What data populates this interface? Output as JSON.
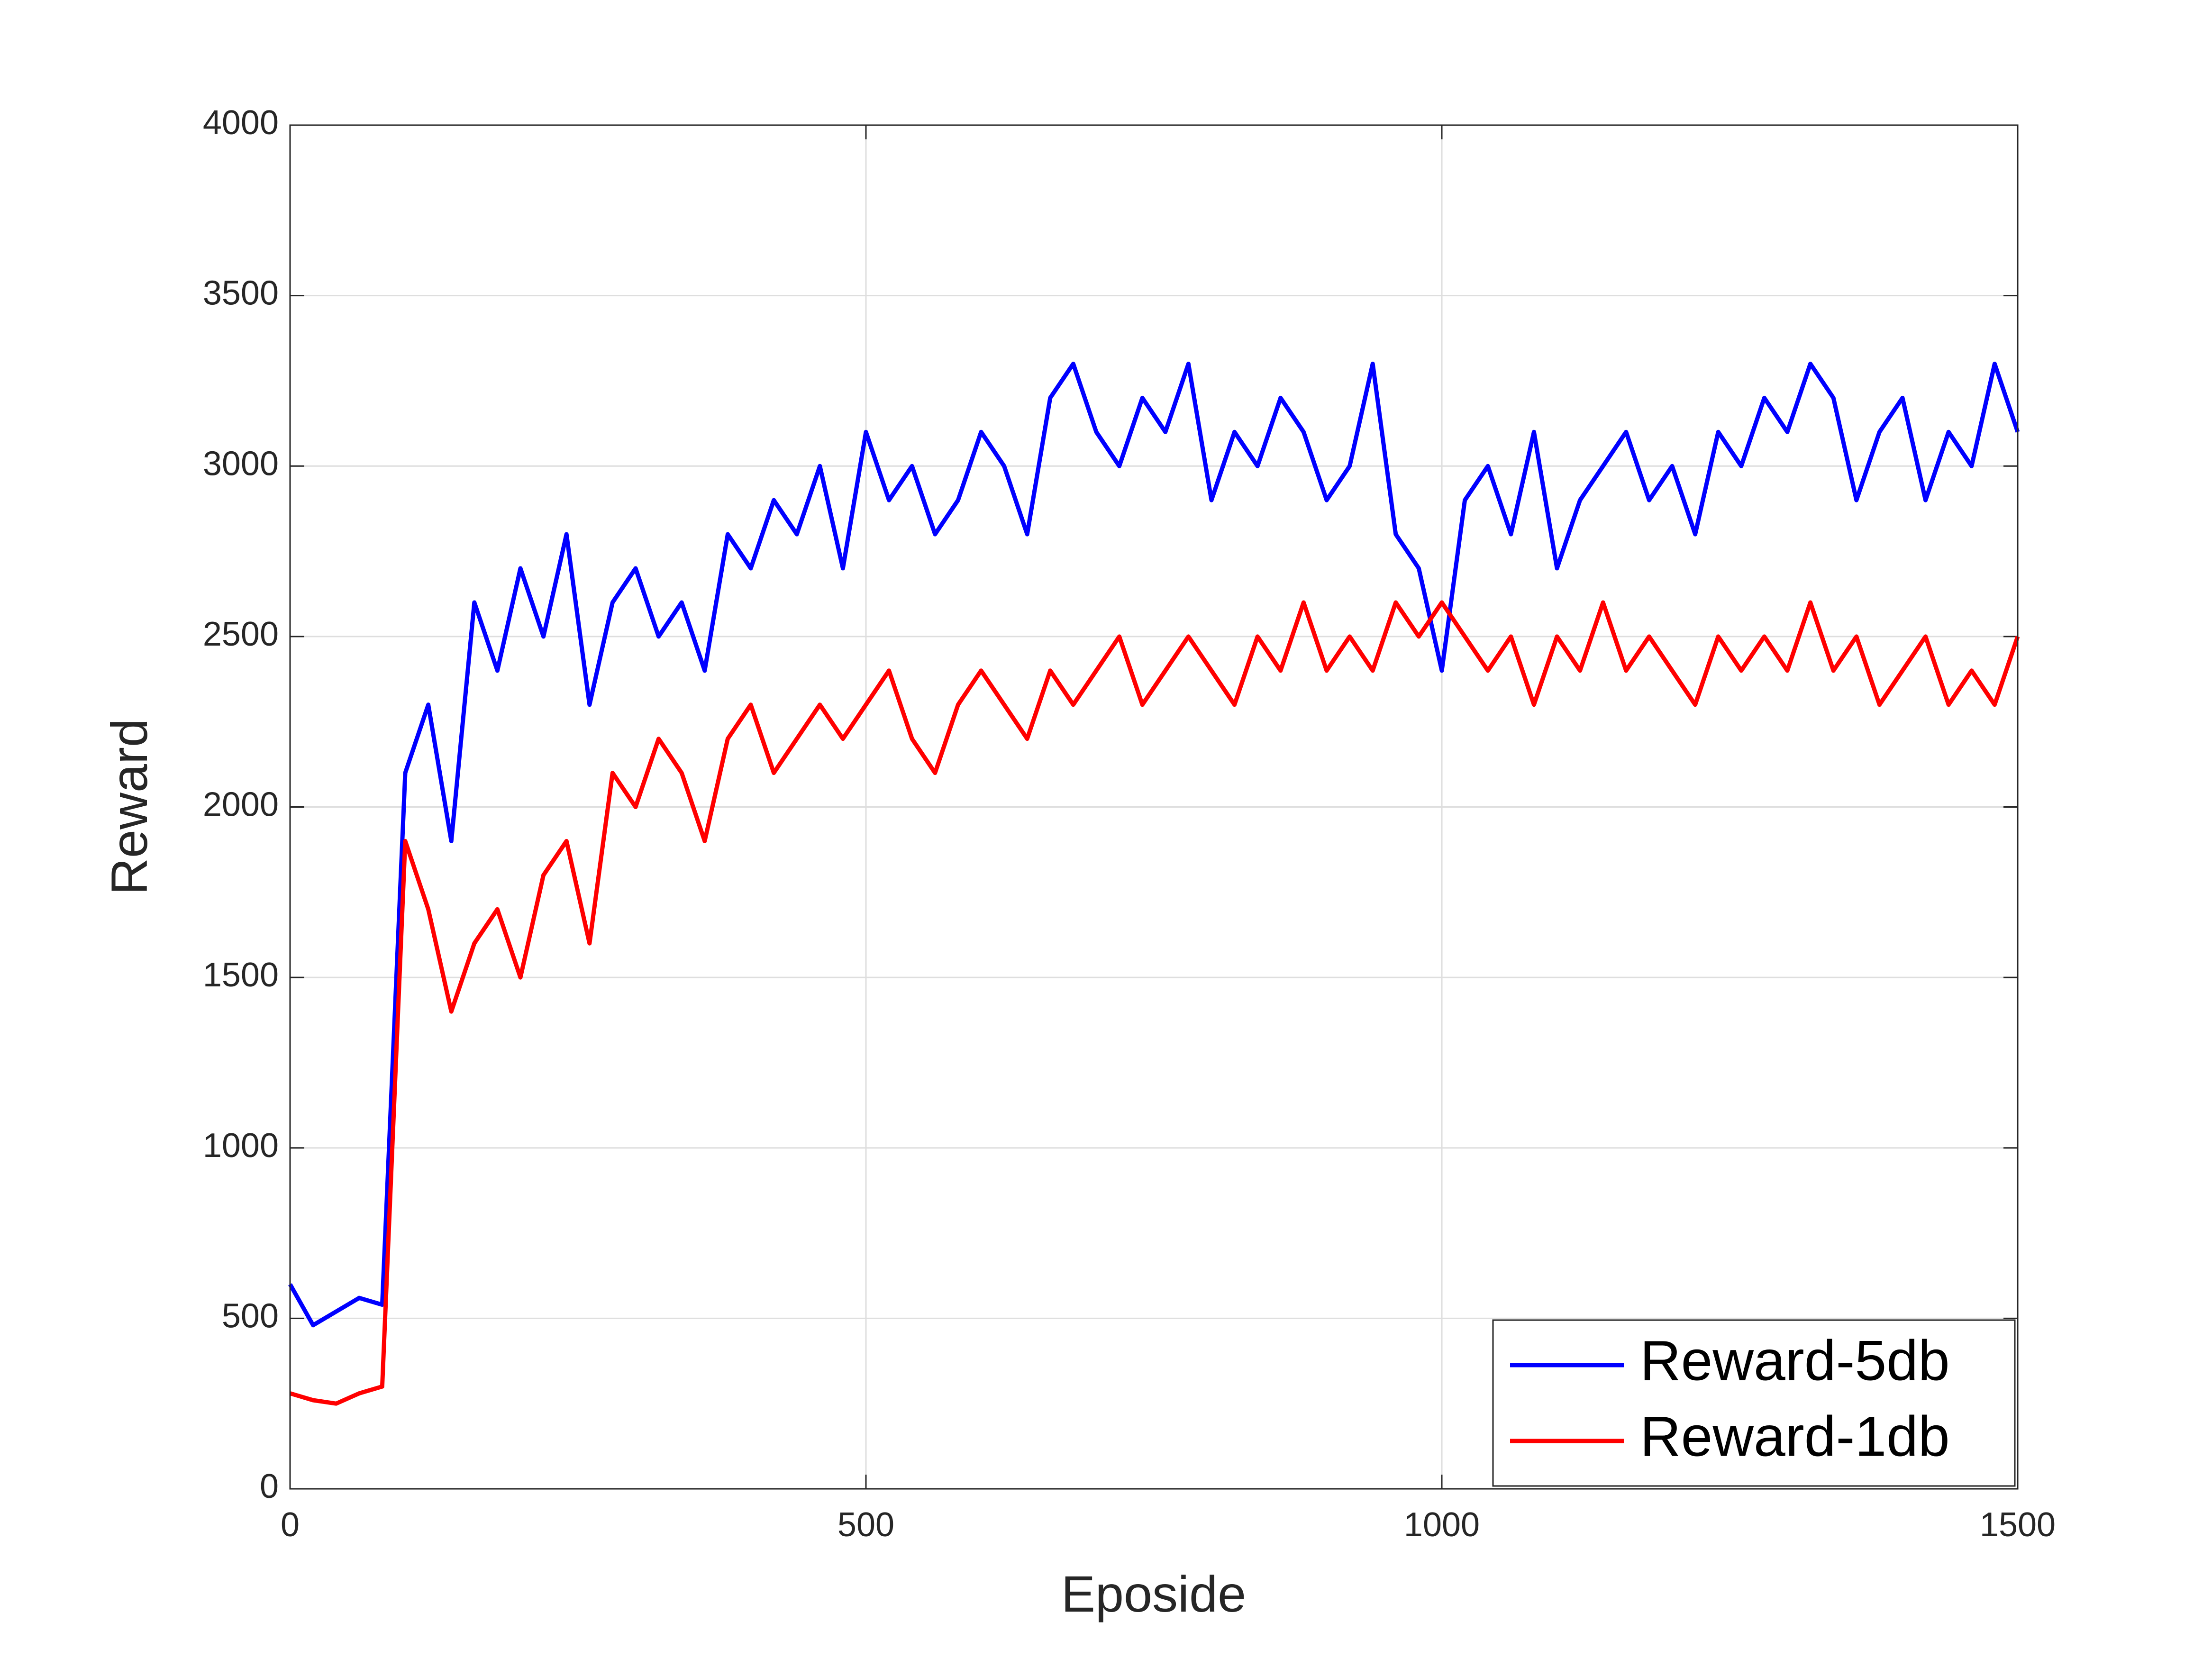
{
  "chart_data": {
    "type": "line",
    "xlabel": "Eposide",
    "ylabel": "Reward",
    "x": [
      0,
      20,
      40,
      60,
      80,
      100,
      120,
      140,
      160,
      180,
      200,
      220,
      240,
      260,
      280,
      300,
      320,
      340,
      360,
      380,
      400,
      420,
      440,
      460,
      480,
      500,
      520,
      540,
      560,
      580,
      600,
      620,
      640,
      660,
      680,
      700,
      720,
      740,
      760,
      780,
      800,
      820,
      840,
      860,
      880,
      900,
      920,
      940,
      960,
      980,
      1000,
      1020,
      1040,
      1060,
      1080,
      1100,
      1120,
      1140,
      1160,
      1180,
      1200,
      1220,
      1240,
      1260,
      1280,
      1300,
      1320,
      1340,
      1360,
      1380,
      1400,
      1420,
      1440,
      1460,
      1480,
      1500
    ],
    "series": [
      {
        "name": "Reward-5db",
        "color": "#0000ff",
        "values": [
          600,
          480,
          520,
          560,
          540,
          2100,
          2300,
          1900,
          2600,
          2400,
          2700,
          2500,
          2800,
          2300,
          2600,
          2700,
          2500,
          2600,
          2400,
          2800,
          2700,
          2900,
          2800,
          3000,
          2700,
          3100,
          2900,
          3000,
          2800,
          2900,
          3100,
          3000,
          2800,
          3200,
          3300,
          3100,
          3000,
          3200,
          3100,
          3300,
          2900,
          3100,
          3000,
          3200,
          3100,
          2900,
          3000,
          3300,
          2800,
          2700,
          2400,
          2900,
          3000,
          2800,
          3100,
          2700,
          2900,
          3000,
          3100,
          2900,
          3000,
          2800,
          3100,
          3000,
          3200,
          3100,
          3300,
          3200,
          2900,
          3100,
          3200,
          2900,
          3100,
          3000,
          3300,
          3100
        ]
      },
      {
        "name": "Reward-1db",
        "color": "#ff0000",
        "values": [
          280,
          260,
          250,
          280,
          300,
          1900,
          1700,
          1400,
          1600,
          1700,
          1500,
          1800,
          1900,
          1600,
          2100,
          2000,
          2200,
          2100,
          1900,
          2200,
          2300,
          2100,
          2200,
          2300,
          2200,
          2300,
          2400,
          2200,
          2100,
          2300,
          2400,
          2300,
          2200,
          2400,
          2300,
          2400,
          2500,
          2300,
          2400,
          2500,
          2400,
          2300,
          2500,
          2400,
          2600,
          2400,
          2500,
          2400,
          2600,
          2500,
          2600,
          2500,
          2400,
          2500,
          2300,
          2500,
          2400,
          2600,
          2400,
          2500,
          2400,
          2300,
          2500,
          2400,
          2500,
          2400,
          2600,
          2400,
          2500,
          2300,
          2400,
          2500,
          2300,
          2400,
          2300,
          2500
        ]
      }
    ],
    "xlim": [
      0,
      1500
    ],
    "xticks": [
      0,
      500,
      1000,
      1500
    ],
    "ylim": [
      0,
      4000
    ],
    "yticks": [
      0,
      500,
      1000,
      1500,
      2000,
      2500,
      3000,
      3500,
      4000
    ],
    "grid": true,
    "legend": "lower right"
  }
}
